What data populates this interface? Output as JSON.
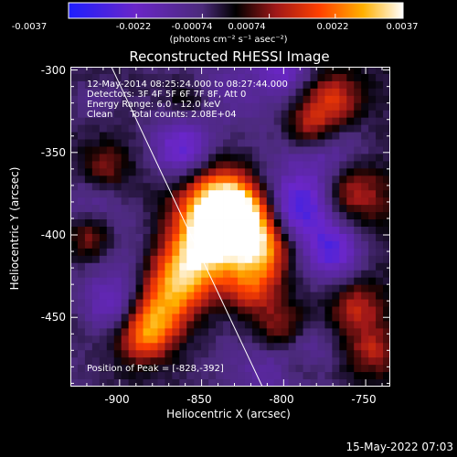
{
  "chart_data": {
    "type": "heatmap",
    "title": "Reconstructed RHESSI Image",
    "xlabel": "Heliocentric X (arcsec)",
    "ylabel": "Heliocentric Y (arcsec)",
    "xlim": [
      -930,
      -735
    ],
    "ylim": [
      -492,
      -298
    ],
    "x_ticks": [
      "-900",
      "-850",
      "-800",
      "-750"
    ],
    "y_ticks": [
      "-300",
      "-350",
      "-400",
      "-450"
    ],
    "x_tick_values": [
      -900,
      -850,
      -800,
      -750
    ],
    "y_tick_values": [
      -300,
      -350,
      -400,
      -450
    ],
    "colorbar": {
      "tick_labels": [
        "-0.0037",
        "-0.0022",
        "-0.00074",
        "0.00074",
        "0.0022",
        "0.0037"
      ],
      "tick_values": [
        -0.0037,
        -0.0022,
        -0.00074,
        0.00074,
        0.0022,
        0.0037
      ],
      "range": [
        -0.0037,
        0.0037
      ],
      "units": "(photons cm⁻² s⁻¹ asec⁻²)"
    },
    "annotations": {
      "time_range": "12-May-2014 08:25:24.000 to 08:27:44.000",
      "detectors": "Detectors: 3F 4F 5F 6F 7F 8F, Att 0",
      "energy_range": "Energy Range: 6.0 - 12.0 keV",
      "clean_total": "Clean      Total counts: 2.08E+04",
      "peak": "Position of Peak = [-828,-392]"
    },
    "peak_position": [
      -828,
      -392
    ],
    "limb_line": [
      [
        -905,
        -298
      ],
      [
        -813,
        -492
      ]
    ],
    "grid": false,
    "bright_source_region": {
      "x_range": [
        -900,
        -800
      ],
      "y_range": [
        -470,
        -370
      ]
    }
  },
  "footer": {
    "date": "15-May-2022 07:03"
  }
}
